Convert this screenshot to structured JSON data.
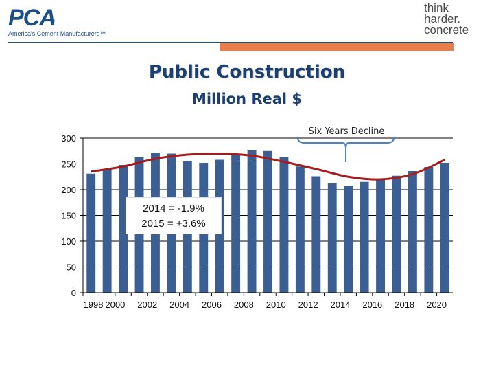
{
  "header": {
    "left_logo": {
      "mark": "PCA",
      "tagline": "America's Cement Manufacturers™"
    },
    "right_logo": {
      "line1": "think",
      "line2": "harder.",
      "line3": "concrete"
    }
  },
  "slide": {
    "title": "Public Construction",
    "subtitle": "Million Real $"
  },
  "colors": {
    "bar": "#3b5f93",
    "trend": "#a61c1c",
    "grid": "#000000",
    "orange_bar": "#e87f4b"
  },
  "annotations": {
    "growth_line1": "2014 = -1.9%",
    "growth_line2": "2015 = +3.6%",
    "callout": "Six Years Decline"
  },
  "chart_data": {
    "type": "bar",
    "title": "Public Construction",
    "subtitle": "Million Real $",
    "xlabel": "",
    "ylabel": "",
    "x": [
      1998,
      1999,
      2000,
      2001,
      2002,
      2003,
      2004,
      2005,
      2006,
      2007,
      2008,
      2009,
      2010,
      2011,
      2012,
      2013,
      2014,
      2015,
      2016,
      2017,
      2018,
      2019,
      2020
    ],
    "x_tick_labels": [
      "1998",
      "2000",
      "2002",
      "2004",
      "2006",
      "2008",
      "2010",
      "2012",
      "2014",
      "2016",
      "2018",
      "2020"
    ],
    "values": [
      231,
      240,
      248,
      263,
      272,
      270,
      256,
      252,
      258,
      268,
      276,
      275,
      263,
      245,
      226,
      212,
      208,
      215,
      221,
      227,
      236,
      244,
      252
    ],
    "ylim": [
      0,
      300
    ],
    "yticks": [
      0,
      50,
      100,
      150,
      200,
      250,
      300
    ],
    "grid": "horizontal",
    "trend_line": {
      "x": [
        1998,
        2000,
        2002,
        2004,
        2006,
        2008,
        2010,
        2012,
        2014,
        2016,
        2018,
        2020
      ],
      "values": [
        235,
        245,
        260,
        268,
        270,
        266,
        254,
        240,
        225,
        220,
        230,
        258
      ]
    }
  }
}
